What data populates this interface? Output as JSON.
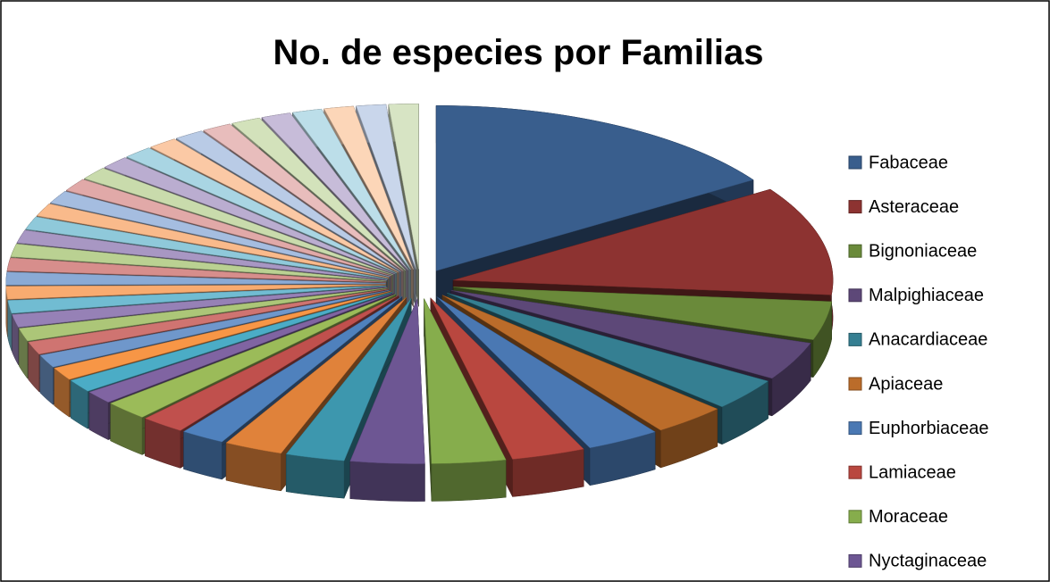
{
  "chart_data": {
    "type": "pie3d",
    "title": "No. de especies por Familias",
    "categories": [
      "Fabaceae",
      "Asteraceae",
      "Bignoniaceae",
      "Malpighiaceae",
      "Anacardiaceae",
      "Apiaceae",
      "Euphorbiaceae",
      "Lamiaceae",
      "Moraceae",
      "Nyctaginaceae",
      null,
      null,
      null,
      null,
      null,
      null,
      null,
      null,
      null,
      null,
      null,
      null,
      null,
      null,
      null,
      null,
      null,
      null,
      null,
      null,
      null,
      null,
      null,
      null,
      null,
      null,
      null,
      null,
      null,
      null,
      null,
      null,
      null,
      null
    ],
    "values": [
      25,
      17,
      6,
      6,
      5,
      5,
      5,
      5,
      5,
      5,
      4,
      4,
      3,
      3,
      3,
      2,
      2,
      2,
      2,
      2,
      2,
      2,
      2,
      2,
      2,
      2,
      2,
      2,
      2,
      2,
      2,
      2,
      2,
      2,
      2,
      2,
      2,
      2,
      2,
      2,
      2,
      2,
      2,
      2
    ],
    "colors": [
      "#395e8d",
      "#8d3331",
      "#6a8a3a",
      "#5d4878",
      "#357f92",
      "#bb6c2a",
      "#4a78b3",
      "#b9473f",
      "#86ad4c",
      "#6d5693",
      "#3d97ae",
      "#e0823a",
      "#4f81bd",
      "#c0504d",
      "#9bbb59",
      "#8064a2",
      "#4bacc6",
      "#f79646",
      "#6f97cb",
      "#cf7471",
      "#acc678",
      "#9681b6",
      "#71bcd2",
      "#f8ab70",
      "#8aaad5",
      "#d78e8c",
      "#bad192",
      "#a897c3",
      "#8fc9da",
      "#f9ba8b",
      "#a5bde0",
      "#e1a9a8",
      "#c9dbac",
      "#baadd0",
      "#a9d5e3",
      "#fbc9a5",
      "#b9cbe6",
      "#e8bdbc",
      "#d3e2bb",
      "#c7bcd9",
      "#bcdee9",
      "#fcd6b8",
      "#c9d6eb",
      "#d7e4c4"
    ]
  }
}
